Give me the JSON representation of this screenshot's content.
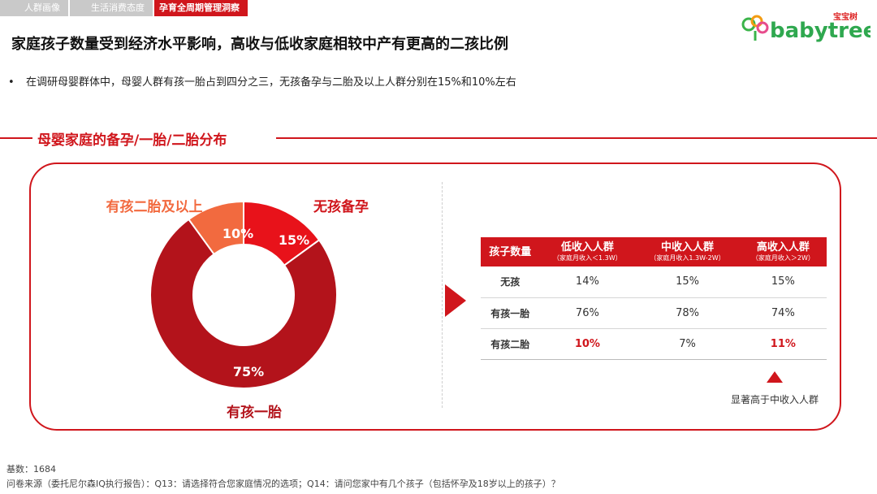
{
  "tabs": [
    {
      "label": "人群画像"
    },
    {
      "label": "生活消费态度"
    },
    {
      "label": "孕育全周期管理洞察"
    }
  ],
  "logo": {
    "text": "babytree",
    "cn": "宝宝树"
  },
  "headline": "家庭孩子数量受到经济水平影响，高收与低收家庭相较中产有更高的二孩比例",
  "bullet": "在调研母婴群体中，母婴人群有孩一胎占到四分之三，无孩备孕与二胎及以上人群分别在15%和10%左右",
  "section_title": "母婴家庭的备孕/一胎/二胎分布",
  "colors": {
    "accent": "#d0161c",
    "slice_bright": "#e8121a",
    "slice_dark": "#b3131b",
    "slice_orange": "#f26a3f"
  },
  "chart_data": [
    {
      "type": "pie",
      "title": "",
      "slices": [
        {
          "name": "无孩备孕",
          "value": 15,
          "label": "15%"
        },
        {
          "name": "有孩一胎",
          "value": 75,
          "label": "75%"
        },
        {
          "name": "有孩二胎及以上",
          "value": 10,
          "label": "10%"
        }
      ],
      "donut": true
    },
    {
      "type": "table",
      "header": {
        "label": "孩子数量"
      },
      "columns": [
        {
          "name": "低收入人群",
          "sub": "（家庭月收入＜1.3W）"
        },
        {
          "name": "中收入人群",
          "sub": "（家庭月收入1.3W-2W）"
        },
        {
          "name": "高收入人群",
          "sub": "（家庭月收入＞2W）"
        }
      ],
      "rows": [
        {
          "label": "无孩",
          "values": [
            "14%",
            "15%",
            "15%"
          ],
          "highlight": [
            false,
            false,
            false
          ]
        },
        {
          "label": "有孩一胎",
          "values": [
            "76%",
            "78%",
            "74%"
          ],
          "highlight": [
            false,
            false,
            false
          ]
        },
        {
          "label": "有孩二胎",
          "values": [
            "10%",
            "7%",
            "11%"
          ],
          "highlight": [
            true,
            false,
            true
          ]
        }
      ]
    }
  ],
  "note": "显著高于中收入人群",
  "base": "基数：1684",
  "source": "问卷来源（委托尼尔森IQ执行报告）：Q13：请选择符合您家庭情况的选项；Q14：请问您家中有几个孩子（包括怀孕及18岁以上的孩子）？"
}
